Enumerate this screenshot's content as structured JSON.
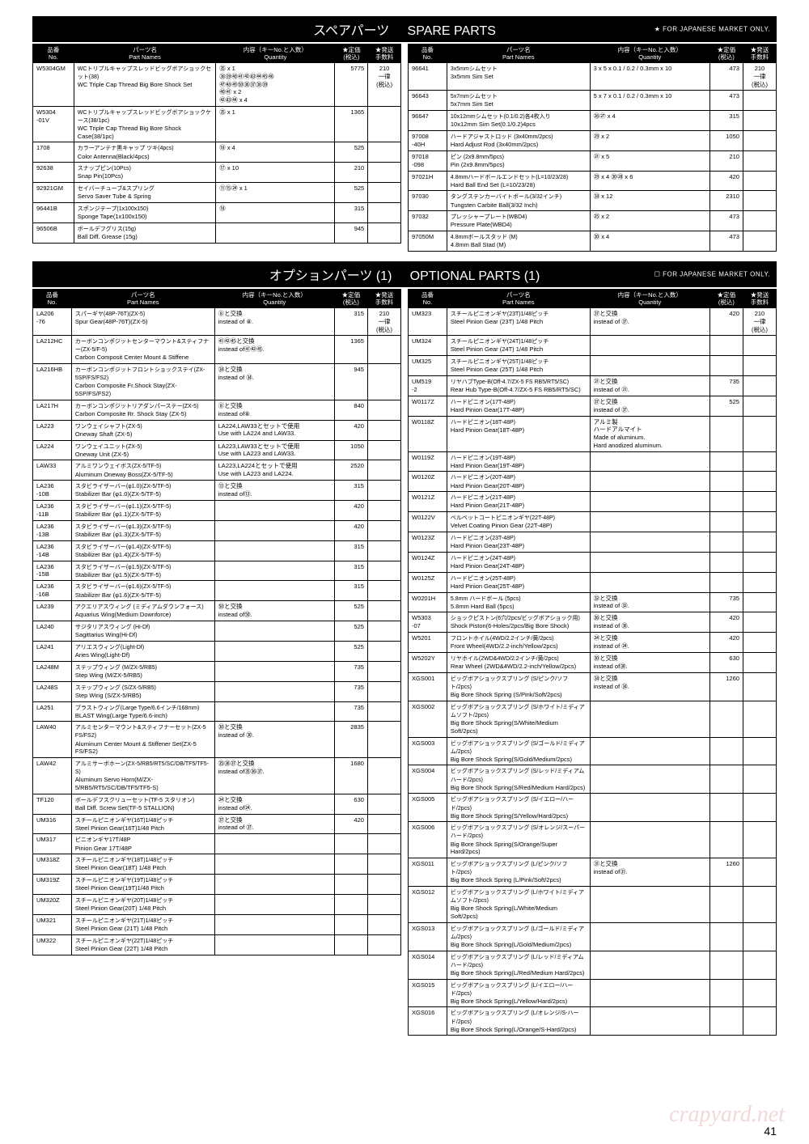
{
  "sections": {
    "spare": {
      "title_jp": "スペアパーツ",
      "title_en": "SPARE PARTS",
      "note": "★ FOR JAPANESE MARKET ONLY."
    },
    "optional": {
      "title_jp": "オプションパーツ (1)",
      "title_en": "OPTIONAL PARTS (1)",
      "note": "☐ FOR JAPANESE MARKET ONLY."
    }
  },
  "headers": {
    "no": "品番\nNo.",
    "name": "パーツ名\nPart Names",
    "qty": "内容（キーNo.と入数）\nQuantity",
    "price": "★定価\n(税込)",
    "ship": "★発送\n手数料"
  },
  "spare_left": [
    {
      "no": "W5304GM",
      "jp": "WCトリプルキャップスレッドビッグボアショックセット(38)",
      "en": "WC Triple Cap Thread Big Bore Shock Set",
      "qty": "㉟ x 1\n㊳㊴㊵㊶㊷㊸㊹㊺㊻\n㊼㊽㊾㊿㊱㊲㊳㊴\n㊵㊶ x 2\n㊷㊸㊹ x 4",
      "price": "5775",
      "ship": "210\n一律\n(税込)"
    },
    {
      "no": "W5304\n-01V",
      "jp": "WCトリプルキャップスレッドビッグボアショックケース(38/1pc)",
      "en": "WC Triple Cap Thread Big Bore Shock Case(38/1pc)",
      "qty": "㉟ x 1",
      "price": "1365",
      "ship": ""
    },
    {
      "no": "1708",
      "jp": "カラーアンテナ黒キャップ ツキ(4pcs)",
      "en": "Color Antenna(Black/4pcs)",
      "qty": "⑱ x 4",
      "price": "525",
      "ship": ""
    },
    {
      "no": "92638",
      "jp": "スナップピン(10Pcs)",
      "en": "Snap Pin(10Pcs)",
      "qty": "⑰ x 10",
      "price": "210",
      "ship": ""
    },
    {
      "no": "92921GM",
      "jp": "セイバーチューブ&スプリング",
      "en": "Servo Saver Tube & Spring",
      "qty": "⑪⑮㉔ x 1",
      "price": "525",
      "ship": ""
    },
    {
      "no": "96441B",
      "jp": "スポンジテープ(1x100x150)",
      "en": "Sponge Tape(1x100x150)",
      "qty": "⑱",
      "price": "315",
      "ship": ""
    },
    {
      "no": "96506B",
      "jp": "ボールデフグリス(15g)",
      "en": "Ball Diff. Grease (15g)",
      "qty": "",
      "price": "945",
      "ship": ""
    }
  ],
  "spare_right": [
    {
      "no": "96641",
      "jp": "3x5mmシムセット",
      "en": "3x5mm Sim Set",
      "qty": "3 x 5 x 0.1 / 0.2 / 0.3mm  x 10",
      "price": "473",
      "ship": "210\n一律\n(税込)"
    },
    {
      "no": "96643",
      "jp": "5x7mmシムセット",
      "en": "5x7mm Sim Set",
      "qty": "5 x 7 x 0.1 / 0.2 / 0.3mm  x 10",
      "price": "473",
      "ship": ""
    },
    {
      "no": "96647",
      "jp": "10x12mmシムセット(0.1/0.2)各4枚入り",
      "en": "10x12mm Sim Set(0.1/0.2)4pcs",
      "qty": "㉖㉗ x 4",
      "price": "315",
      "ship": ""
    },
    {
      "no": "97008\n-40H",
      "jp": "ハードアジャストロッド (3x40mm/2pcs)",
      "en": "Hard Adjust Rod (3x40mm/2pcs)",
      "qty": "㉙ x 2",
      "price": "1050",
      "ship": ""
    },
    {
      "no": "97018\n-098",
      "jp": "ピン (2x9.8mm/5pcs)",
      "en": "Pin (2x9.8mm/5pcs)",
      "qty": "㉑ x 5",
      "price": "210",
      "ship": ""
    },
    {
      "no": "97021H",
      "jp": "4.8mmハードボールエンドセット(L=10/23/28)",
      "en": "Hard Ball End Set (L=10/23/28)",
      "qty": "㉙ x 4 ㉚㉘ x 6",
      "price": "420",
      "ship": ""
    },
    {
      "no": "97030",
      "jp": "タングステンカーバイトボール(3/32インチ)",
      "en": "Tungsten Carbite Ball(3/32 Inch)",
      "qty": "㉞ x 12",
      "price": "2310",
      "ship": ""
    },
    {
      "no": "97032",
      "jp": "プレッシャープレート(WBD4)",
      "en": "Pressure Plate(WBD4)",
      "qty": "㉕ x 2",
      "price": "473",
      "ship": ""
    },
    {
      "no": "97050M",
      "jp": "4.8mmボールスタッド (M)",
      "en": "4.8mm Ball Stad (M)",
      "qty": "㉚ x 4",
      "price": "473",
      "ship": ""
    }
  ],
  "opt_left": [
    {
      "no": "LA206\n-76",
      "jp": "スパーギヤ(48P-76T)(ZX-5)",
      "en": "Spur Gear(48P-76T)(ZX-5)",
      "qty": "⑧と交換\ninstead of ⑧.",
      "price": "315",
      "ship": "210\n一律\n(税込)"
    },
    {
      "no": "LA212HC",
      "jp": "カーボンコンポジットセンターマウント&スティフナー(ZX-5/F-5)",
      "en": "Carbon Composit Center Mount & Stiffene",
      "qty": "㊶㊷㊺と交換\ninstead of㊶㊷㊺.",
      "price": "1365",
      "ship": ""
    },
    {
      "no": "LA216HB",
      "jp": "カーボンコンポジットフロントショックステイ(ZX-5SP/FS/FS2)",
      "en": "Carbon Composite Fr.Shock Stay(ZX-5SP/FS/FS2)",
      "qty": "㉞と交換\ninstead of ㉞.",
      "price": "945",
      "ship": ""
    },
    {
      "no": "LA217H",
      "jp": "カーボンコンポジットリアダンパーステー(ZX-5)",
      "en": "Carbon Composite Rr. Shock Stay (ZX-5)",
      "qty": "⑧と交換\ninstead of⑧.",
      "price": "840",
      "ship": ""
    },
    {
      "no": "LA223",
      "jp": "ワンウェイシャフト(ZX-5)",
      "en": "Oneway Shaft (ZX-5)",
      "qty": "LA224,LAW33とセットで使用\nUse with LA224 and LAW33.",
      "price": "420",
      "ship": ""
    },
    {
      "no": "LA224",
      "jp": "ワンウェイユニット(ZX-5)",
      "en": "Oneway Unit (ZX-5)",
      "qty": "LA223,LAW33とセットで使用\nUse with LA223 and LAW33.",
      "price": "1050",
      "ship": ""
    },
    {
      "no": "LAW33",
      "jp": "アルミワンウェイボス(ZX-5/TF-5)",
      "en": "Aluminum Oneway Boss(ZX-5/TF-5)",
      "qty": "LA223,LA224とセットで使用\nUse with LA223 and LA224.",
      "price": "2520",
      "ship": ""
    },
    {
      "no": "LA236\n-10B",
      "jp": "スタビライザーバー(φ1.0)(ZX-5/TF-5)",
      "en": "Stabilizer Bar (φ1.0)(ZX-5/TF-5)",
      "qty": "⑬と交換\ninstead of⑬.",
      "price": "315",
      "ship": ""
    },
    {
      "no": "LA236\n-11B",
      "jp": "スタビライザーバー(φ1.1)(ZX-5/TF-5)",
      "en": "Stabilizer Bar (φ1.1)(ZX-5/TF-5)",
      "qty": "",
      "price": "420",
      "ship": ""
    },
    {
      "no": "LA236\n-13B",
      "jp": "スタビライザーバー(φ1.3)(ZX-5/TF-5)",
      "en": "Stabilizer Bar (φ1.3)(ZX-5/TF-5)",
      "qty": "",
      "price": "420",
      "ship": ""
    },
    {
      "no": "LA236\n-14B",
      "jp": "スタビライザーバー(φ1.4)(ZX-5/TF-5)",
      "en": "Stabilizer Bar (φ1.4)(ZX-5/TF-5)",
      "qty": "",
      "price": "315",
      "ship": ""
    },
    {
      "no": "LA236\n-15B",
      "jp": "スタビライザーバー(φ1.5)(ZX-5/TF-5)",
      "en": "Stabilizer Bar (φ1.5)(ZX-5/TF-5)",
      "qty": "",
      "price": "315",
      "ship": ""
    },
    {
      "no": "LA236\n-16B",
      "jp": "スタビライザーバー(φ1.6)(ZX-5/TF-5)",
      "en": "Stabilizer Bar (φ1.6)(ZX-5/TF-5)",
      "qty": "",
      "price": "315",
      "ship": ""
    },
    {
      "no": "LA239",
      "jp": "アクエリアスウィング (ミディアムダウンフォース)",
      "en": "Aquarius Wing(Medium Downforce)",
      "qty": "㊿と交換\ninstead of㊿.",
      "price": "525",
      "ship": ""
    },
    {
      "no": "LA240",
      "jp": "サジタリアスウィング (Hi-Df)",
      "en": "Sagittarius Wing(Hi-Df)",
      "qty": "",
      "price": "525",
      "ship": ""
    },
    {
      "no": "LA241",
      "jp": "アリエスウィング(Light-Df)",
      "en": "Aries Wing(Light-Df)",
      "qty": "",
      "price": "525",
      "ship": ""
    },
    {
      "no": "LA248M",
      "jp": "ステップウィング (M/ZX-5/RB5)",
      "en": "Step Wing (M/ZX-5/RB5)",
      "qty": "",
      "price": "735",
      "ship": ""
    },
    {
      "no": "LA248S",
      "jp": "ステップウィング (S/ZX-5/RB5)",
      "en": "Step Wing (S/ZX-5/RB5)",
      "qty": "",
      "price": "735",
      "ship": ""
    },
    {
      "no": "LA251",
      "jp": "ブラストウィング(Large Type/6.6インチ/168mm)",
      "en": "BLAST Wing(Large Type/6.6-inch)",
      "qty": "",
      "price": "735",
      "ship": ""
    },
    {
      "no": "LAW40",
      "jp": "アルミセンターマウント&スティフナーセット(ZX-5 FS/FS2)",
      "en": "Aluminum Center Mount & Stiffener Set(ZX-5 FS/FS2)",
      "qty": "㉚と交換\ninstead of ㉚.",
      "price": "2835",
      "ship": ""
    },
    {
      "no": "LAW42",
      "jp": "アルミサーボホーン(ZX-5/RB5/RT5/SC/DB/TF5/TF5-S)",
      "en": "Aluminum Servo Horn(M/ZX-5/RB5/RT5/SC/DB/TF5/TF5-S)",
      "qty": "㉟㊱㊲と交換\ninstead of㉟㊱㊲.",
      "price": "1680",
      "ship": ""
    },
    {
      "no": "TF120",
      "jp": "ボールデフスクリューセット(TF-5 スタリオン)",
      "en": "Ball Diff. Screw Set(TF-5 STALLION)",
      "qty": "㉔と交換\ninstead of㉔.",
      "price": "630",
      "ship": ""
    },
    {
      "no": "UM316",
      "jp": "スチールピニオンギヤ(16T)1/48ピッチ",
      "en": "Steel Pinion Gear(16T)1/48 Pitch",
      "qty": "㊲と交換\ninstead of ㊲.",
      "price": "420",
      "ship": ""
    },
    {
      "no": "UM317",
      "jp": "ピニオンギヤ17T/48P",
      "en": "Pinion Gear 17T/48P",
      "qty": "",
      "price": "",
      "ship": ""
    },
    {
      "no": "UM318Z",
      "jp": "スチールピニオンギヤ(18T)1/48ピッチ",
      "en": "Steel Pinion Gear(18T) 1/48 Pitch",
      "qty": "",
      "price": "",
      "ship": ""
    },
    {
      "no": "UM319Z",
      "jp": "スチールピニオンギヤ(19T)1/48ピッチ",
      "en": "Steel Pinion Gear(19T)1/48 Pitch",
      "qty": "",
      "price": "",
      "ship": ""
    },
    {
      "no": "UM320Z",
      "jp": "スチールピニオンギヤ(20T)1/48ピッチ",
      "en": "Steel Pinion Gear(20T) 1/48 Pitch",
      "qty": "",
      "price": "",
      "ship": ""
    },
    {
      "no": "UM321",
      "jp": "スチールピニオンギヤ(21T)1/48ピッチ",
      "en": "Steel Pinion Gear (21T) 1/48 Pitch",
      "qty": "",
      "price": "",
      "ship": ""
    },
    {
      "no": "UM322",
      "jp": "スチールピニオンギヤ(22T)1/48ピッチ",
      "en": "Steel Pinion Gear (22T) 1/48 Pitch",
      "qty": "",
      "price": "",
      "ship": ""
    }
  ],
  "opt_right": [
    {
      "no": "UM323",
      "jp": "スチールピニオンギヤ(23T)1/48ピッチ",
      "en": "Steel Pinion Gear (23T) 1/48 Pitch",
      "qty": "㊲と交換\ninstead of ㊲.",
      "price": "420",
      "ship": "210\n一律\n(税込)"
    },
    {
      "no": "UM324",
      "jp": "スチールピニオンギヤ(24T)1/48ピッチ",
      "en": "Steel Pinion Gear (24T) 1/48 Pitch",
      "qty": "",
      "price": "",
      "ship": ""
    },
    {
      "no": "UM325",
      "jp": "スチールピニオンギヤ(25T)1/48ピッチ",
      "en": "Steel Pinion Gear (25T) 1/48 Pitch",
      "qty": "",
      "price": "",
      "ship": ""
    },
    {
      "no": "UM519\n-2",
      "jp": "リヤハブType-B(Off-4.7/ZX-5 FS RB5/RT5/SC)",
      "en": "Rear Hub Type-B(Off-4.7/ZX-5 FS RB5/RT5/SC)",
      "qty": "㉑と交換\ninstead of ㉑.",
      "price": "735",
      "ship": ""
    },
    {
      "no": "W0117Z",
      "jp": "ハードピニオン(17T-48P)",
      "en": "Hard Pinion Gear(17T-48P)",
      "qty": "㊲と交換\ninstead of ㊲.",
      "price": "525",
      "ship": ""
    },
    {
      "no": "W0118Z",
      "jp": "ハードピニオン(18T-48P)",
      "en": "Hard Pinion Gear(18T-48P)",
      "qty": "アルミ製\nハードアルマイト\nMade of aluminum.\nHard anodized aluminum.",
      "price": "",
      "ship": ""
    },
    {
      "no": "W0119Z",
      "jp": "ハードピニオン(19T-48P)",
      "en": "Hard Pinion Gear(19T-48P)",
      "qty": "",
      "price": "",
      "ship": ""
    },
    {
      "no": "W0120Z",
      "jp": "ハードピニオン(20T-48P)",
      "en": "Hard Pinion Gear(20T-48P)",
      "qty": "",
      "price": "",
      "ship": ""
    },
    {
      "no": "W0121Z",
      "jp": "ハードピニオン(21T-48P)",
      "en": "Hard Pinion Gear(21T-48P)",
      "qty": "",
      "price": "",
      "ship": ""
    },
    {
      "no": "W0122V",
      "jp": "ベルベットコートピニオンギヤ(22T-48P)",
      "en": "Velvet Coating Pinion Gear (22T-48P)",
      "qty": "",
      "price": "",
      "ship": ""
    },
    {
      "no": "W0123Z",
      "jp": "ハードピニオン(23T-48P)",
      "en": "Hard Pinion Gear(23T-48P)",
      "qty": "",
      "price": "",
      "ship": ""
    },
    {
      "no": "W0124Z",
      "jp": "ハードピニオン(24T-48P)",
      "en": "Hard Pinion Gear(24T-48P)",
      "qty": "",
      "price": "",
      "ship": ""
    },
    {
      "no": "W0125Z",
      "jp": "ハードピニオン(25T-48P)",
      "en": "Hard Pinion Gear(25T-48P)",
      "qty": "",
      "price": "",
      "ship": ""
    },
    {
      "no": "W0201H",
      "jp": "5.8mm ハードボール (5pcs)",
      "en": "5.8mm Hard Ball (5pcs)",
      "qty": "㉜と交換\ninstead of ㉜.",
      "price": "735",
      "ship": ""
    },
    {
      "no": "W5303\n-07",
      "jp": "ショックピストン(6穴/2pcs/ビッグボアショック用)",
      "en": "Shock Piston(6-Holes/2pcs/Big Bore Shock)",
      "qty": "㊱と交換\ninstead of ㊱.",
      "price": "420",
      "ship": ""
    },
    {
      "no": "W5201",
      "jp": "フロントホイル(4WD/2.2インチ/黄/2pcs)",
      "en": "Front Wheel(4WD/2.2-inch/Yellow/2pcs)",
      "qty": "㉔と交換\ninstead of ㉔.",
      "price": "420",
      "ship": ""
    },
    {
      "no": "W5202Y",
      "jp": "リヤホイル(2WD&4WD/2.2インチ/黄/2pcs)",
      "en": "Rear Wheel (2WD&4WD/2.2-inch/Yellow/2pcs)",
      "qty": "㉚と交換\ninstead of㉚.",
      "price": "630",
      "ship": ""
    },
    {
      "no": "XGS001",
      "jp": "ビッグボアショックスプリング (S/ピンク/ソフト/2pcs)",
      "en": "Big Bore Shock Spring (S/Pink/Soft/2pcs)",
      "qty": "㉞と交換\ninstead of ㉞.",
      "price": "1260",
      "ship": ""
    },
    {
      "no": "XGS002",
      "jp": "ビッグボアショックスプリング (S/ホワイト/ミディアムソフト/2pcs)",
      "en": "Big Bore Shock Spring(S/White/Medium Soft/2pcs)",
      "qty": "",
      "price": "",
      "ship": ""
    },
    {
      "no": "XGS003",
      "jp": "ビッグボアショックスプリング (S/ゴールド/ミディアム/2pcs)",
      "en": "Big Bore Shock Spring(S/Gold/Medium/2pcs)",
      "qty": "",
      "price": "",
      "ship": ""
    },
    {
      "no": "XGS004",
      "jp": "ビッグボアショックスプリング (S/レッド/ミディアムハード/2pcs)",
      "en": "Big Bore Shock Spring(S/Red/Medium Hard/2pcs)",
      "qty": "",
      "price": "",
      "ship": ""
    },
    {
      "no": "XGS005",
      "jp": "ビッグボアショックスプリング (S/イエロー/ハード/2pcs)",
      "en": "Big Bore Shock Spring(S/Yellow/Hard/2pcs)",
      "qty": "",
      "price": "",
      "ship": ""
    },
    {
      "no": "XGS006",
      "jp": "ビッグボアショックスプリング (S/オレンジ/スーパーハード/2pcs)",
      "en": "Big Bore Shock Spring(S/Orange/Super Hard/2pcs)",
      "qty": "",
      "price": "",
      "ship": ""
    },
    {
      "no": "XGS011",
      "jp": "ビッグボアショックスプリング (L/ピンク/ソフト/2pcs)",
      "en": "Big Bore Shock Spring (L/Pink/Soft/2pcs)",
      "qty": "㉛と交換\ninstead of㉛.",
      "price": "1260",
      "ship": ""
    },
    {
      "no": "XGS012",
      "jp": "ビッグボアショックスプリング (L/ホワイト/ミディアムソフト/2pcs)",
      "en": "Big Bore Shock Spring(L/White/Medium Soft/2pcs)",
      "qty": "",
      "price": "",
      "ship": ""
    },
    {
      "no": "XGS013",
      "jp": "ビッグボアショックスプリング (L/ゴールド/ミディアム/2pcs)",
      "en": "Big Bore Shock Spring(L/Gold/Medium/2pcs)",
      "qty": "",
      "price": "",
      "ship": ""
    },
    {
      "no": "XGS014",
      "jp": "ビッグボアショックスプリング (L/レッド/ミディアムハード/2pcs)",
      "en": "Big Bore Shock Spring(L/Red/Medium Hard/2pcs)",
      "qty": "",
      "price": "",
      "ship": ""
    },
    {
      "no": "XGS015",
      "jp": "ビッグボアショックスプリング (L/イエロー/ハード/2pcs)",
      "en": "Big Bore Shock Spring(L/Yellow/Hard/2pcs)",
      "qty": "",
      "price": "",
      "ship": ""
    },
    {
      "no": "XGS016",
      "jp": "ビッグボアショックスプリング (L/オレンジ/S-ハード/2pcs)",
      "en": "Big Bore Shock Spring(L/Orange/S-Hard/2pcs)",
      "qty": "",
      "price": "",
      "ship": ""
    }
  ],
  "page_number": "41",
  "watermark": "crapyard.net"
}
